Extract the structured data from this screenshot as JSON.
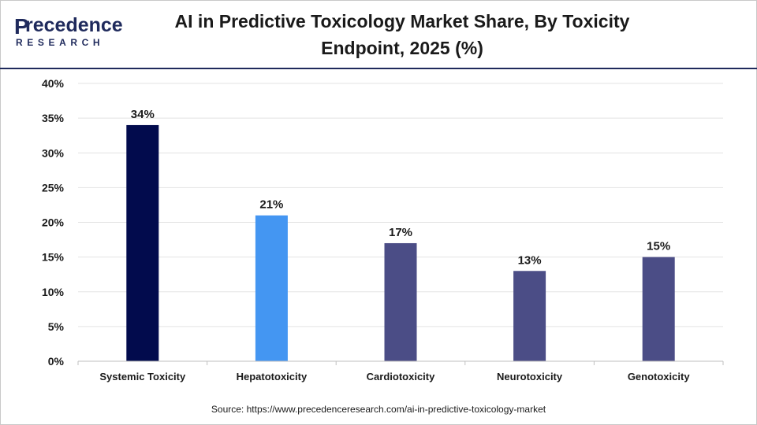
{
  "header": {
    "logo_main": "recedence",
    "logo_initial": "P",
    "logo_sub": "RESEARCH",
    "title_line1": "AI in Predictive Toxicology Market Share, By Toxicity",
    "title_line2": "Endpoint, 2025 (%)"
  },
  "footer": {
    "source": "Source: https://www.precedenceresearch.com/ai-in-predictive-toxicology-market"
  },
  "chart_data": {
    "type": "bar",
    "title": "AI in Predictive Toxicology Market Share, By Toxicity Endpoint, 2025 (%)",
    "xlabel": "",
    "ylabel": "",
    "categories": [
      "Systemic Toxicity",
      "Hepatotoxicity",
      "Cardiotoxicity",
      "Neurotoxicity",
      "Genotoxicity"
    ],
    "values": [
      34,
      21,
      17,
      13,
      15
    ],
    "value_labels": [
      "34%",
      "21%",
      "17%",
      "13%",
      "15%"
    ],
    "bar_colors": [
      "#020b4d",
      "#4496f2",
      "#4b4d86",
      "#4b4d86",
      "#4b4d86"
    ],
    "ylim": [
      0,
      40
    ],
    "yticks": [
      0,
      5,
      10,
      15,
      20,
      25,
      30,
      35,
      40
    ],
    "ytick_labels": [
      "0%",
      "5%",
      "10%",
      "15%",
      "20%",
      "25%",
      "30%",
      "35%",
      "40%"
    ],
    "grid": true,
    "legend": "none"
  }
}
